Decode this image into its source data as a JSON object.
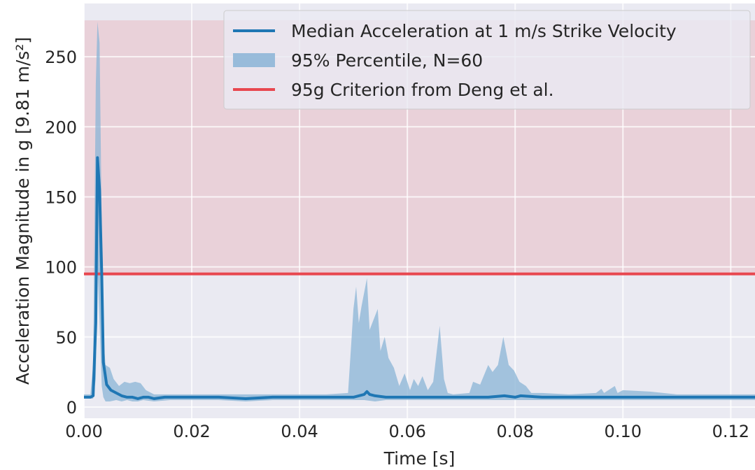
{
  "chart_data": {
    "type": "line",
    "xlabel": "Time [s]",
    "ylabel": "Acceleration Magnitude in g [9.81 m/s²]",
    "xlim": [
      0.0,
      0.1245
    ],
    "ylim": [
      -8,
      288
    ],
    "x_ticks": [
      0.0,
      0.02,
      0.04,
      0.06,
      0.08,
      0.1,
      0.12
    ],
    "x_tick_labels": [
      "0.00",
      "0.02",
      "0.04",
      "0.06",
      "0.08",
      "0.10",
      "0.12"
    ],
    "y_ticks": [
      0,
      50,
      100,
      150,
      200,
      250
    ],
    "y_tick_labels": [
      "0",
      "50",
      "100",
      "150",
      "200",
      "250"
    ],
    "grid": true,
    "legend_position": "top-right",
    "criterion_band": {
      "y_from": 95,
      "y_to": 276,
      "color": "#e8a3ad"
    },
    "series": [
      {
        "name": "Median Acceleration at 1 m/s Strike Velocity",
        "kind": "line",
        "color": "#1f77b4",
        "points": [
          [
            0.0,
            7
          ],
          [
            0.0012,
            7
          ],
          [
            0.0017,
            8
          ],
          [
            0.0022,
            60
          ],
          [
            0.0025,
            178
          ],
          [
            0.0029,
            155
          ],
          [
            0.0033,
            95
          ],
          [
            0.0036,
            32
          ],
          [
            0.0042,
            16
          ],
          [
            0.005,
            12
          ],
          [
            0.006,
            10
          ],
          [
            0.007,
            8
          ],
          [
            0.008,
            7
          ],
          [
            0.009,
            7
          ],
          [
            0.01,
            6
          ],
          [
            0.011,
            7
          ],
          [
            0.012,
            7
          ],
          [
            0.013,
            6
          ],
          [
            0.015,
            7
          ],
          [
            0.02,
            7
          ],
          [
            0.025,
            7
          ],
          [
            0.03,
            6
          ],
          [
            0.035,
            7
          ],
          [
            0.04,
            7
          ],
          [
            0.045,
            7
          ],
          [
            0.05,
            7
          ],
          [
            0.051,
            8
          ],
          [
            0.052,
            9
          ],
          [
            0.0525,
            11
          ],
          [
            0.053,
            9
          ],
          [
            0.054,
            8
          ],
          [
            0.056,
            7
          ],
          [
            0.06,
            7
          ],
          [
            0.065,
            7
          ],
          [
            0.07,
            7
          ],
          [
            0.075,
            7
          ],
          [
            0.078,
            8
          ],
          [
            0.08,
            7
          ],
          [
            0.081,
            8
          ],
          [
            0.085,
            7
          ],
          [
            0.09,
            7
          ],
          [
            0.095,
            7
          ],
          [
            0.1,
            7
          ],
          [
            0.105,
            7
          ],
          [
            0.11,
            7
          ],
          [
            0.115,
            7
          ],
          [
            0.12,
            7
          ],
          [
            0.1245,
            7
          ]
        ]
      },
      {
        "name": "95% Percentile, N=60",
        "kind": "band",
        "color": "#8ab4d6",
        "upper": [
          [
            0.0,
            9
          ],
          [
            0.0012,
            9
          ],
          [
            0.0017,
            30
          ],
          [
            0.0022,
            230
          ],
          [
            0.0025,
            275
          ],
          [
            0.0029,
            260
          ],
          [
            0.0033,
            130
          ],
          [
            0.0036,
            50
          ],
          [
            0.004,
            30
          ],
          [
            0.0048,
            28
          ],
          [
            0.0055,
            20
          ],
          [
            0.0065,
            15
          ],
          [
            0.0075,
            18
          ],
          [
            0.0085,
            17
          ],
          [
            0.0095,
            18
          ],
          [
            0.0105,
            17
          ],
          [
            0.0115,
            12
          ],
          [
            0.013,
            9
          ],
          [
            0.016,
            9
          ],
          [
            0.02,
            9
          ],
          [
            0.025,
            9
          ],
          [
            0.03,
            9
          ],
          [
            0.035,
            9
          ],
          [
            0.04,
            9
          ],
          [
            0.045,
            9
          ],
          [
            0.049,
            10
          ],
          [
            0.0495,
            40
          ],
          [
            0.05,
            70
          ],
          [
            0.0505,
            86
          ],
          [
            0.051,
            60
          ],
          [
            0.0515,
            72
          ],
          [
            0.0525,
            92
          ],
          [
            0.053,
            55
          ],
          [
            0.0545,
            70
          ],
          [
            0.055,
            40
          ],
          [
            0.0558,
            50
          ],
          [
            0.0565,
            35
          ],
          [
            0.0575,
            28
          ],
          [
            0.0585,
            15
          ],
          [
            0.0595,
            24
          ],
          [
            0.0605,
            12
          ],
          [
            0.0612,
            20
          ],
          [
            0.062,
            15
          ],
          [
            0.0628,
            22
          ],
          [
            0.0638,
            12
          ],
          [
            0.0648,
            18
          ],
          [
            0.066,
            58
          ],
          [
            0.0668,
            20
          ],
          [
            0.0675,
            10
          ],
          [
            0.0685,
            9
          ],
          [
            0.0715,
            10
          ],
          [
            0.0722,
            18
          ],
          [
            0.0735,
            16
          ],
          [
            0.075,
            30
          ],
          [
            0.0758,
            25
          ],
          [
            0.0768,
            30
          ],
          [
            0.0778,
            50
          ],
          [
            0.0788,
            30
          ],
          [
            0.0798,
            26
          ],
          [
            0.0808,
            18
          ],
          [
            0.082,
            15
          ],
          [
            0.083,
            10
          ],
          [
            0.085,
            10
          ],
          [
            0.09,
            9
          ],
          [
            0.095,
            10
          ],
          [
            0.096,
            13
          ],
          [
            0.0965,
            10
          ],
          [
            0.0985,
            15
          ],
          [
            0.099,
            10
          ],
          [
            0.1,
            12
          ],
          [
            0.105,
            11
          ],
          [
            0.11,
            9
          ],
          [
            0.115,
            9
          ],
          [
            0.12,
            9
          ],
          [
            0.1245,
            9
          ]
        ],
        "lower": [
          [
            0.0,
            6
          ],
          [
            0.0012,
            6
          ],
          [
            0.0017,
            6
          ],
          [
            0.0022,
            20
          ],
          [
            0.0025,
            100
          ],
          [
            0.0029,
            60
          ],
          [
            0.0033,
            15
          ],
          [
            0.0036,
            7
          ],
          [
            0.004,
            4
          ],
          [
            0.0048,
            4
          ],
          [
            0.006,
            5
          ],
          [
            0.007,
            4
          ],
          [
            0.008,
            5
          ],
          [
            0.009,
            4
          ],
          [
            0.01,
            4
          ],
          [
            0.011,
            5
          ],
          [
            0.013,
            4
          ],
          [
            0.016,
            5
          ],
          [
            0.02,
            5
          ],
          [
            0.025,
            5
          ],
          [
            0.03,
            4
          ],
          [
            0.035,
            5
          ],
          [
            0.04,
            5
          ],
          [
            0.045,
            5
          ],
          [
            0.05,
            5
          ],
          [
            0.052,
            5
          ],
          [
            0.054,
            4
          ],
          [
            0.056,
            5
          ],
          [
            0.058,
            5
          ],
          [
            0.06,
            5
          ],
          [
            0.065,
            5
          ],
          [
            0.07,
            5
          ],
          [
            0.075,
            5
          ],
          [
            0.08,
            5
          ],
          [
            0.085,
            5
          ],
          [
            0.09,
            5
          ],
          [
            0.095,
            5
          ],
          [
            0.1,
            5
          ],
          [
            0.105,
            5
          ],
          [
            0.11,
            5
          ],
          [
            0.115,
            5
          ],
          [
            0.12,
            5
          ],
          [
            0.1245,
            5
          ]
        ]
      },
      {
        "name": "95g Criterion from Deng et al.",
        "kind": "hline",
        "color": "#e8474f",
        "y": 95
      }
    ]
  }
}
